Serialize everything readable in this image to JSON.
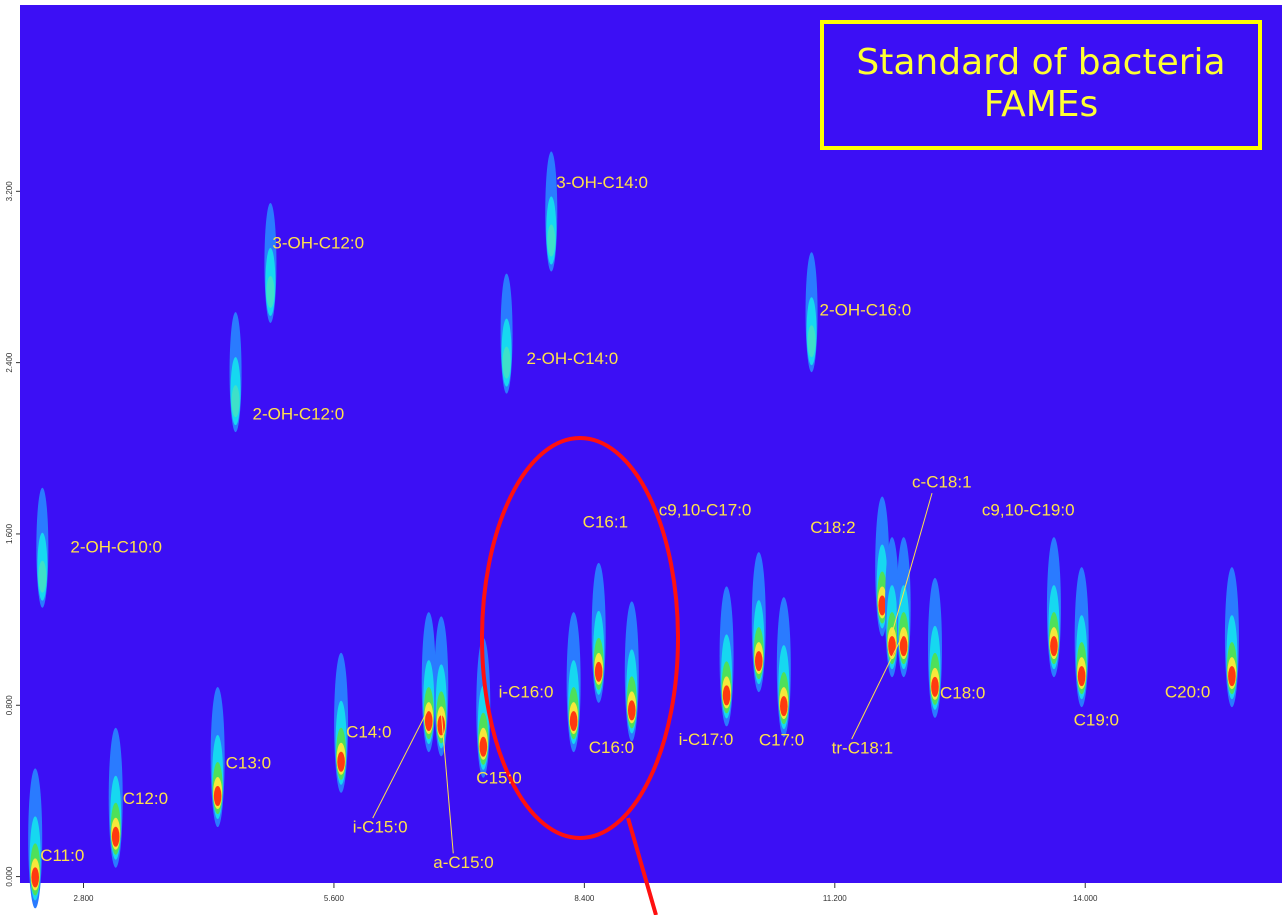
{
  "chart_data": {
    "type": "contour",
    "title": "Standard of bacteria FAMEs",
    "xlim": [
      2.09,
      16.2
    ],
    "ylim": [
      -0.03,
      4.07
    ],
    "xticks": [
      {
        "value": 2.8,
        "label": "2.800"
      },
      {
        "value": 5.6,
        "label": "5.600"
      },
      {
        "value": 8.4,
        "label": "8.400"
      },
      {
        "value": 11.2,
        "label": "11.200"
      },
      {
        "value": 14.0,
        "label": "14.000"
      }
    ],
    "yticks": [
      {
        "value": 0,
        "label": "0.000"
      },
      {
        "value": 0.8,
        "label": "0.800"
      },
      {
        "value": 1.6,
        "label": "1.600"
      },
      {
        "value": 2.4,
        "label": "2.400"
      },
      {
        "value": 3.2,
        "label": "3.200"
      }
    ],
    "peaks": [
      {
        "label": "C11:0",
        "x": 2.26,
        "y": 0.01
      },
      {
        "label": "C12:0",
        "x": 3.16,
        "y": 0.2
      },
      {
        "label": "C13:0",
        "x": 4.3,
        "y": 0.39
      },
      {
        "label": "C14:0",
        "x": 5.68,
        "y": 0.55
      },
      {
        "label": "i-C15:0",
        "x": 6.66,
        "y": 0.74
      },
      {
        "label": "a-C15:0",
        "x": 6.8,
        "y": 0.72
      },
      {
        "label": "C15:0",
        "x": 7.27,
        "y": 0.62
      },
      {
        "label": "i-C16:0",
        "x": 8.28,
        "y": 0.74
      },
      {
        "label": "C16:1",
        "x": 8.56,
        "y": 0.97
      },
      {
        "label": "C16:0",
        "x": 8.93,
        "y": 0.79
      },
      {
        "label": "i-C17:0",
        "x": 9.99,
        "y": 0.86
      },
      {
        "label": "c9,10-C17:0",
        "x": 10.35,
        "y": 1.02
      },
      {
        "label": "C17:0",
        "x": 10.63,
        "y": 0.81
      },
      {
        "label": "C18:2",
        "x": 11.73,
        "y": 1.28
      },
      {
        "label": "c-C18:1",
        "x": 11.84,
        "y": 1.09
      },
      {
        "label": "tr-C18:1",
        "x": 11.97,
        "y": 1.09
      },
      {
        "label": "C18:0",
        "x": 12.32,
        "y": 0.9
      },
      {
        "label": "c9,10-C19:0",
        "x": 13.65,
        "y": 1.09
      },
      {
        "label": "C19:0",
        "x": 13.96,
        "y": 0.95
      },
      {
        "label": "C20:0",
        "x": 15.64,
        "y": 0.95
      },
      {
        "label": "2-OH-C10:0",
        "x": 2.34,
        "y": 1.4
      },
      {
        "label": "2-OH-C12:0",
        "x": 4.5,
        "y": 2.22
      },
      {
        "label": "3-OH-C12:0",
        "x": 4.89,
        "y": 2.73
      },
      {
        "label": "2-OH-C14:0",
        "x": 7.53,
        "y": 2.4
      },
      {
        "label": "3-OH-C14:0",
        "x": 8.03,
        "y": 2.97
      },
      {
        "label": "2-OH-C16:0",
        "x": 10.94,
        "y": 2.5
      }
    ]
  }
}
